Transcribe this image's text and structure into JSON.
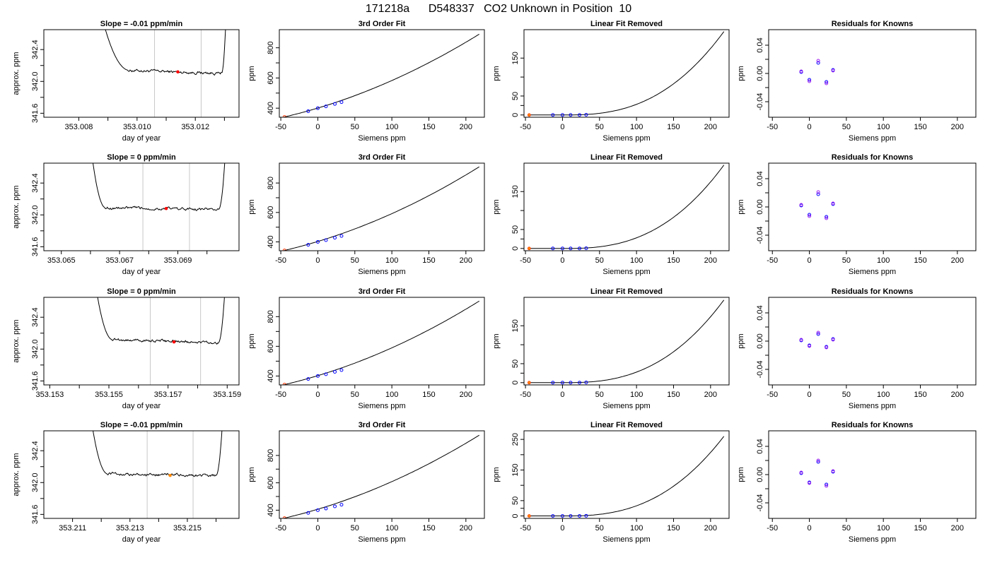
{
  "page_title": "171218a      D548337   CO2 Unknown in Position  10",
  "chart_data": [
    {
      "type": "line",
      "kind": "trace",
      "title": "Slope =  -0.01  ppm/min",
      "xlabel": "day of year",
      "ylabel": "approx. ppm",
      "xlim": [
        353.0068,
        353.0135
      ],
      "ylim": [
        341.55,
        342.65
      ],
      "xticks": [
        353.008,
        353.01,
        353.012
      ],
      "yticks": [
        341.6,
        342.0,
        342.4
      ],
      "vlines": [
        353.0106,
        353.0122
      ],
      "x_start": 353.0087,
      "x_end": 353.0131,
      "plateau_start": 353.0097,
      "plateau_end": 353.0129,
      "level": 342.14,
      "drift": -0.04,
      "markers": [
        {
          "x": 353.0114,
          "y": 342.12,
          "color": "#ff0000"
        }
      ]
    },
    {
      "type": "line",
      "kind": "fit",
      "title": "3rd Order Fit",
      "xlabel": "Siemens ppm",
      "ylabel": "ppm",
      "xlim": [
        -52,
        225
      ],
      "ylim": [
        340,
        920
      ],
      "xticks": [
        -50,
        0,
        50,
        100,
        150,
        200
      ],
      "yticks": [
        400,
        600,
        800
      ],
      "curve": {
        "x0": -45,
        "x1": 218,
        "y0": 342,
        "y1": 890,
        "a": 2.2,
        "b": 100
      },
      "points": {
        "x": [
          -13,
          0,
          11,
          23,
          32
        ],
        "y": [
          380,
          400,
          412,
          428,
          440
        ]
      },
      "ref": {
        "x": -45,
        "y": 342
      }
    },
    {
      "type": "line",
      "kind": "resid",
      "title": "Linear Fit Removed",
      "xlabel": "Siemens ppm",
      "ylabel": "ppm",
      "xlim": [
        -52,
        225
      ],
      "ylim": [
        -6,
        225
      ],
      "xticks": [
        -50,
        0,
        50,
        100,
        150,
        200
      ],
      "yticks": [
        0,
        50,
        150
      ],
      "curve": {
        "x0": -45,
        "x1": 218,
        "y1": 220
      },
      "points": {
        "x": [
          -13,
          0,
          11,
          23,
          32
        ],
        "y": [
          0,
          0,
          0,
          0,
          0.5
        ]
      },
      "ref": {
        "x": -45,
        "y": 0
      }
    },
    {
      "type": "scatter",
      "kind": "known",
      "title": "Residuals for Knowns",
      "xlabel": "Siemens ppm",
      "ylabel": "ppm",
      "xlim": [
        -55,
        225
      ],
      "ylim": [
        -0.062,
        0.062
      ],
      "xticks": [
        -50,
        0,
        50,
        100,
        150,
        200
      ],
      "yticks": [
        -0.04,
        0.0,
        0.04
      ],
      "points": [
        {
          "x": -11,
          "y": 0.002,
          "y2": 0.003
        },
        {
          "x": 0,
          "y": -0.009,
          "y2": -0.011
        },
        {
          "x": 12,
          "y": 0.015,
          "y2": 0.018
        },
        {
          "x": 23,
          "y": -0.012,
          "y2": -0.014
        },
        {
          "x": 32,
          "y": 0.005,
          "y2": 0.004
        }
      ]
    },
    {
      "type": "line",
      "kind": "trace",
      "title": "Slope =  0  ppm/min",
      "xlabel": "day of year",
      "ylabel": "approx. ppm",
      "xlim": [
        353.0644,
        353.0711
      ],
      "ylim": [
        341.55,
        342.65
      ],
      "xticks": [
        353.065,
        353.067,
        353.069
      ],
      "yticks": [
        341.6,
        342.0,
        342.4
      ],
      "vlines": [
        353.0678,
        353.0694
      ],
      "x_start": 353.066,
      "x_end": 353.0707,
      "plateau_start": 353.0665,
      "plateau_end": 353.0704,
      "level": 342.09,
      "drift": -0.02,
      "markers": [
        {
          "x": 353.0686,
          "y": 342.08,
          "color": "#ff0000"
        }
      ]
    },
    {
      "type": "line",
      "kind": "fit",
      "title": "3rd Order Fit",
      "xlabel": "Siemens ppm",
      "ylabel": "ppm",
      "xlim": [
        -52,
        225
      ],
      "ylim": [
        340,
        935
      ],
      "xticks": [
        -50,
        0,
        50,
        100,
        150,
        200
      ],
      "yticks": [
        400,
        600,
        800
      ],
      "curve": {
        "x0": -45,
        "x1": 218,
        "y0": 342,
        "y1": 910,
        "a": 2.2,
        "b": 100
      },
      "points": {
        "x": [
          -13,
          0,
          11,
          23,
          32
        ],
        "y": [
          380,
          400,
          412,
          428,
          440
        ]
      },
      "ref": {
        "x": -45,
        "y": 342
      }
    },
    {
      "type": "line",
      "kind": "resid",
      "title": "Linear Fit Removed",
      "xlabel": "Siemens ppm",
      "ylabel": "ppm",
      "xlim": [
        -52,
        225
      ],
      "ylim": [
        -6,
        225
      ],
      "xticks": [
        -50,
        0,
        50,
        100,
        150,
        200
      ],
      "yticks": [
        0,
        50,
        150
      ],
      "curve": {
        "x0": -45,
        "x1": 218,
        "y1": 220
      },
      "points": {
        "x": [
          -13,
          0,
          11,
          23,
          32
        ],
        "y": [
          0,
          0,
          0,
          0,
          0.5
        ]
      },
      "ref": {
        "x": -45,
        "y": 0
      }
    },
    {
      "type": "scatter",
      "kind": "known",
      "title": "Residuals for Knowns",
      "xlabel": "Siemens ppm",
      "ylabel": "ppm",
      "xlim": [
        -55,
        225
      ],
      "ylim": [
        -0.062,
        0.062
      ],
      "xticks": [
        -50,
        0,
        50,
        100,
        150,
        200
      ],
      "yticks": [
        -0.04,
        0.0,
        0.04
      ],
      "points": [
        {
          "x": -11,
          "y": 0.002,
          "y2": 0.003
        },
        {
          "x": 0,
          "y": -0.011,
          "y2": -0.013
        },
        {
          "x": 12,
          "y": 0.018,
          "y2": 0.021
        },
        {
          "x": 23,
          "y": -0.014,
          "y2": -0.016
        },
        {
          "x": 32,
          "y": 0.004,
          "y2": 0.005
        }
      ]
    },
    {
      "type": "line",
      "kind": "trace",
      "title": "Slope =  0  ppm/min",
      "xlabel": "day of year",
      "ylabel": "approx. ppm",
      "xlim": [
        353.1528,
        353.1594
      ],
      "ylim": [
        341.55,
        342.65
      ],
      "xticks": [
        353.153,
        353.155,
        353.157,
        353.159
      ],
      "yticks": [
        341.6,
        342.0,
        342.4
      ],
      "vlines": [
        353.1564,
        353.1581
      ],
      "x_start": 353.1545,
      "x_end": 353.159,
      "plateau_start": 353.1551,
      "plateau_end": 353.1587,
      "level": 342.12,
      "drift": -0.04,
      "markers": [
        {
          "x": 353.1572,
          "y": 342.09,
          "color": "#ff0000"
        }
      ]
    },
    {
      "type": "line",
      "kind": "fit",
      "title": "3rd Order Fit",
      "xlabel": "Siemens ppm",
      "ylabel": "ppm",
      "xlim": [
        -52,
        225
      ],
      "ylim": [
        340,
        930
      ],
      "xticks": [
        -50,
        0,
        50,
        100,
        150,
        200
      ],
      "yticks": [
        400,
        600,
        800
      ],
      "curve": {
        "x0": -45,
        "x1": 218,
        "y0": 342,
        "y1": 905,
        "a": 2.2,
        "b": 100
      },
      "points": {
        "x": [
          -13,
          0,
          11,
          23,
          32
        ],
        "y": [
          380,
          400,
          412,
          428,
          440
        ]
      },
      "ref": {
        "x": -45,
        "y": 342
      }
    },
    {
      "type": "line",
      "kind": "resid",
      "title": "Linear Fit Removed",
      "xlabel": "Siemens ppm",
      "ylabel": "ppm",
      "xlim": [
        -52,
        225
      ],
      "ylim": [
        -6,
        225
      ],
      "xticks": [
        -50,
        0,
        50,
        100,
        150,
        200
      ],
      "yticks": [
        0,
        50,
        150
      ],
      "curve": {
        "x0": -45,
        "x1": 218,
        "y1": 218
      },
      "points": {
        "x": [
          -13,
          0,
          11,
          23,
          32
        ],
        "y": [
          0,
          0,
          0,
          0,
          0.5
        ]
      },
      "ref": {
        "x": -45,
        "y": 0
      }
    },
    {
      "type": "scatter",
      "kind": "known",
      "title": "Residuals for Knowns",
      "xlabel": "Siemens ppm",
      "ylabel": "ppm",
      "xlim": [
        -55,
        225
      ],
      "ylim": [
        -0.062,
        0.062
      ],
      "xticks": [
        -50,
        0,
        50,
        100,
        150,
        200
      ],
      "yticks": [
        -0.04,
        0.0,
        0.04
      ],
      "points": [
        {
          "x": -11,
          "y": 0.001,
          "y2": 0.002
        },
        {
          "x": 0,
          "y": -0.006,
          "y2": -0.007
        },
        {
          "x": 12,
          "y": 0.01,
          "y2": 0.012
        },
        {
          "x": 23,
          "y": -0.008,
          "y2": -0.009
        },
        {
          "x": 32,
          "y": 0.003,
          "y2": 0.002
        }
      ]
    },
    {
      "type": "line",
      "kind": "trace",
      "title": "Slope =  -0.01  ppm/min",
      "xlabel": "day of year",
      "ylabel": "approx. ppm",
      "xlim": [
        353.21,
        353.2168
      ],
      "ylim": [
        341.55,
        342.65
      ],
      "xticks": [
        353.211,
        353.213,
        353.215
      ],
      "yticks": [
        341.6,
        342.0,
        342.4
      ],
      "vlines": [
        353.2136,
        353.2152
      ],
      "x_start": 353.2116,
      "x_end": 353.2163,
      "plateau_start": 353.2122,
      "plateau_end": 353.216,
      "level": 342.11,
      "drift": -0.02,
      "markers": [
        {
          "x": 353.2144,
          "y": 342.09,
          "color": "#ff8800"
        }
      ]
    },
    {
      "type": "line",
      "kind": "fit",
      "title": "3rd Order Fit",
      "xlabel": "Siemens ppm",
      "ylabel": "ppm",
      "xlim": [
        -52,
        225
      ],
      "ylim": [
        340,
        980
      ],
      "xticks": [
        -50,
        0,
        50,
        100,
        150,
        200
      ],
      "yticks": [
        400,
        600,
        800
      ],
      "curve": {
        "x0": -45,
        "x1": 218,
        "y0": 342,
        "y1": 948,
        "a": 2.2,
        "b": 100
      },
      "points": {
        "x": [
          -13,
          0,
          11,
          23,
          32
        ],
        "y": [
          380,
          400,
          412,
          428,
          440
        ]
      },
      "ref": {
        "x": -45,
        "y": 342
      }
    },
    {
      "type": "line",
      "kind": "resid",
      "title": "Linear Fit Removed",
      "xlabel": "Siemens ppm",
      "ylabel": "ppm",
      "xlim": [
        -52,
        225
      ],
      "ylim": [
        -8,
        278
      ],
      "xticks": [
        -50,
        0,
        50,
        100,
        150,
        200
      ],
      "yticks": [
        0,
        50,
        150,
        250
      ],
      "curve": {
        "x0": -45,
        "x1": 218,
        "y1": 260
      },
      "points": {
        "x": [
          -13,
          0,
          11,
          23,
          32
        ],
        "y": [
          0,
          0,
          0,
          0,
          0.5
        ]
      },
      "ref": {
        "x": -45,
        "y": 0
      }
    },
    {
      "type": "scatter",
      "kind": "known",
      "title": "Residuals for Knowns",
      "xlabel": "Siemens ppm",
      "ylabel": "ppm",
      "xlim": [
        -55,
        225
      ],
      "ylim": [
        -0.062,
        0.062
      ],
      "xticks": [
        -50,
        0,
        50,
        100,
        150,
        200
      ],
      "yticks": [
        -0.04,
        0.0,
        0.04
      ],
      "points": [
        {
          "x": -11,
          "y": 0.002,
          "y2": 0.003
        },
        {
          "x": 0,
          "y": -0.011,
          "y2": -0.012
        },
        {
          "x": 12,
          "y": 0.018,
          "y2": 0.02
        },
        {
          "x": 23,
          "y": -0.014,
          "y2": -0.016
        },
        {
          "x": 32,
          "y": 0.004,
          "y2": 0.005
        }
      ]
    }
  ]
}
